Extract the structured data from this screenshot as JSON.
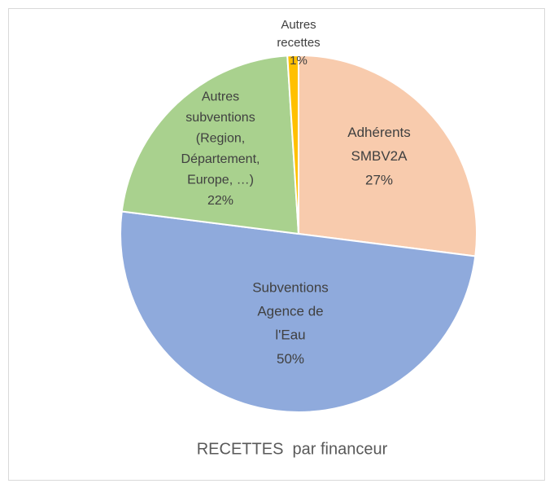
{
  "chart_data": {
    "type": "pie",
    "title": "RECETTES  par financeur",
    "categories": [
      "Adhérents\nSMBV2A",
      "Subventions\nAgence de\nl'Eau",
      "Autres\nsubventions\n(Region,\nDépartement,\nEurope, …)",
      "Autres\nrecettes"
    ],
    "values": [
      27,
      50,
      22,
      1
    ],
    "value_labels": [
      "27%",
      "50%",
      "22%",
      "1%"
    ],
    "colors": [
      "#f8cbad",
      "#8faadc",
      "#a9d18e",
      "#ffc000"
    ]
  }
}
